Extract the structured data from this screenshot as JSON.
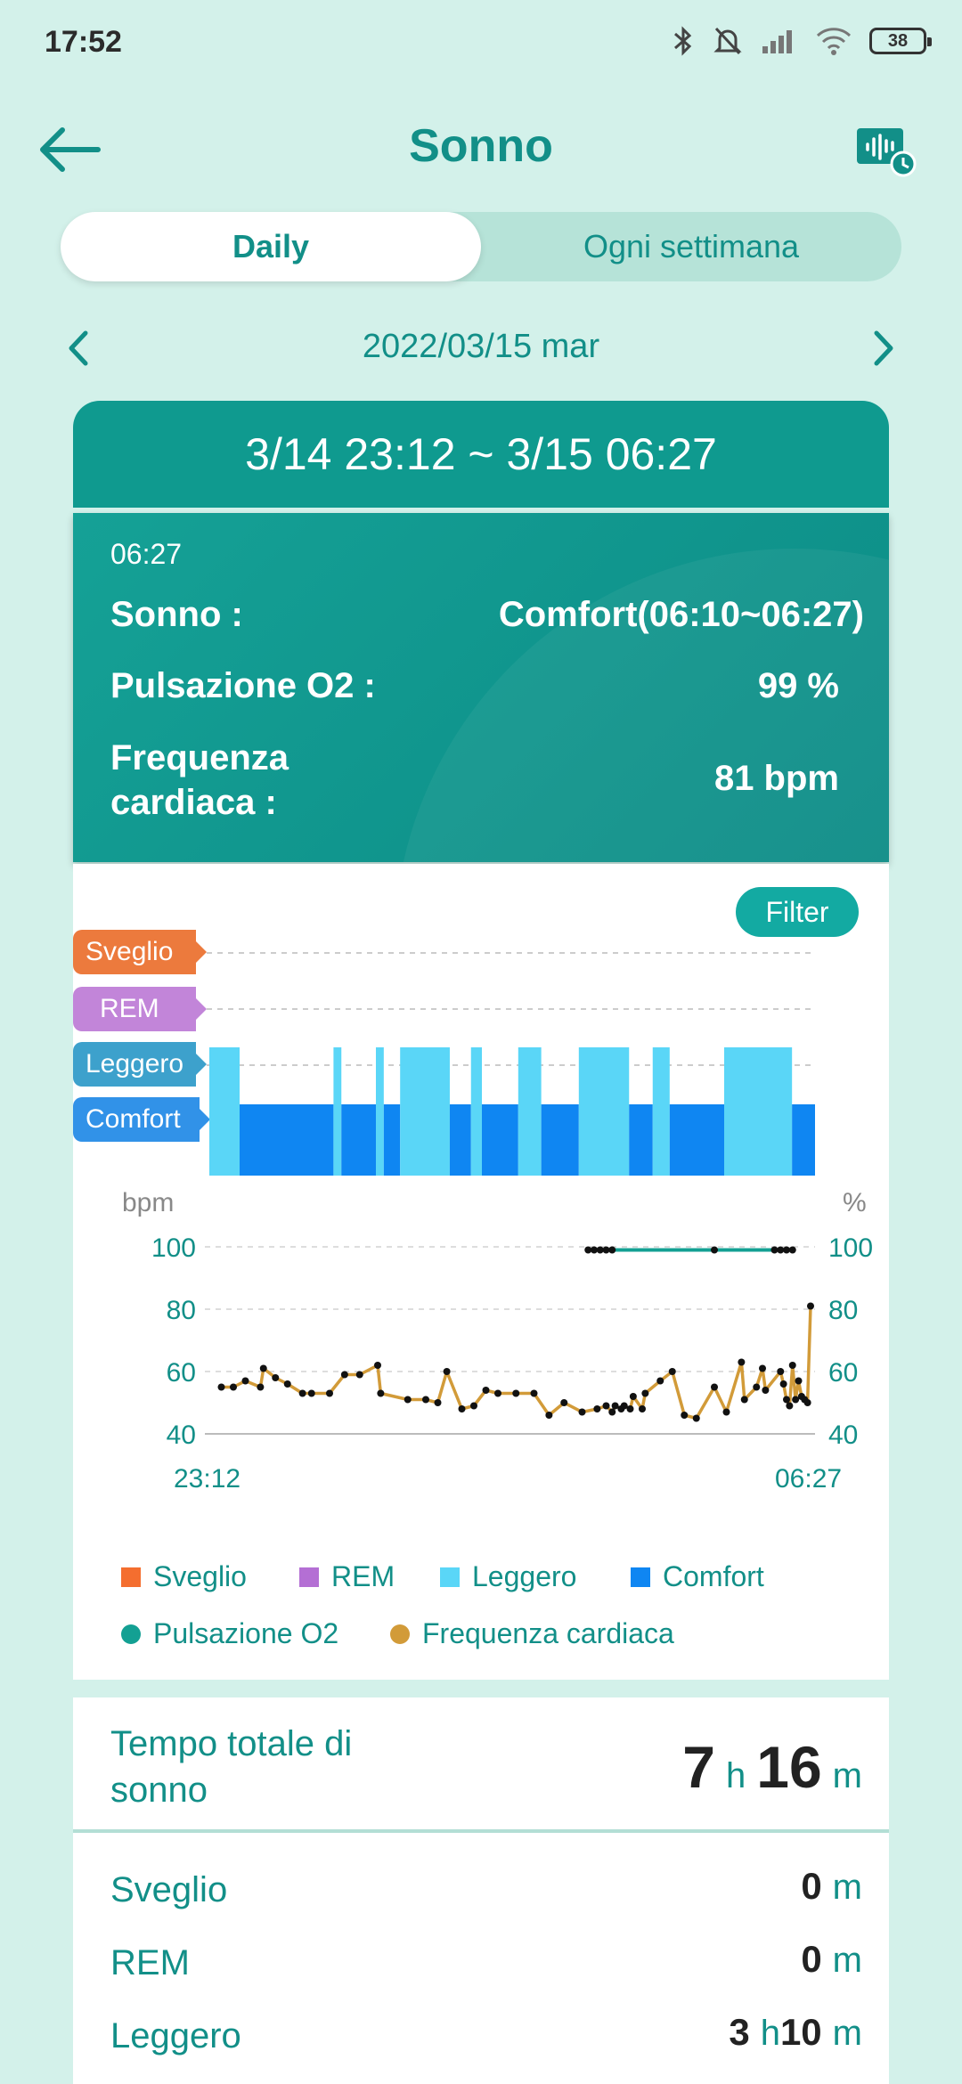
{
  "status_bar": {
    "time": "17:52",
    "battery": "38"
  },
  "header": {
    "title": "Sonno"
  },
  "tabs": [
    {
      "label": "Daily"
    },
    {
      "label": "Ogni settimana"
    }
  ],
  "date": {
    "label": "2022/03/15 mar"
  },
  "record": {
    "range": "3/14 23:12 ~ 3/15 06:27",
    "time": "06:27",
    "sleep_label": "Sonno :",
    "sleep_value": "Comfort(06:10~06:27)",
    "spo2_label": "Pulsazione O2 :",
    "spo2_value": "99 %",
    "hr_label": "Frequenza\ncardiaca :",
    "hr_value": "81 bpm"
  },
  "filter_label": "Filter",
  "chart_data": [
    {
      "type": "bar",
      "levels": [
        "Sveglio",
        "REM",
        "Leggero",
        "Comfort"
      ],
      "x_range": [
        "23:12",
        "06:27"
      ],
      "segments": [
        {
          "start": 0.0,
          "end": 0.05,
          "stage": "Leggero"
        },
        {
          "start": 0.05,
          "end": 0.205,
          "stage": "Comfort"
        },
        {
          "start": 0.205,
          "end": 0.218,
          "stage": "Leggero"
        },
        {
          "start": 0.218,
          "end": 0.275,
          "stage": "Comfort"
        },
        {
          "start": 0.275,
          "end": 0.288,
          "stage": "Leggero"
        },
        {
          "start": 0.288,
          "end": 0.315,
          "stage": "Comfort"
        },
        {
          "start": 0.315,
          "end": 0.397,
          "stage": "Leggero"
        },
        {
          "start": 0.397,
          "end": 0.432,
          "stage": "Comfort"
        },
        {
          "start": 0.432,
          "end": 0.45,
          "stage": "Leggero"
        },
        {
          "start": 0.45,
          "end": 0.51,
          "stage": "Comfort"
        },
        {
          "start": 0.51,
          "end": 0.548,
          "stage": "Leggero"
        },
        {
          "start": 0.548,
          "end": 0.61,
          "stage": "Comfort"
        },
        {
          "start": 0.61,
          "end": 0.693,
          "stage": "Leggero"
        },
        {
          "start": 0.693,
          "end": 0.732,
          "stage": "Comfort"
        },
        {
          "start": 0.732,
          "end": 0.76,
          "stage": "Leggero"
        },
        {
          "start": 0.76,
          "end": 0.85,
          "stage": "Comfort"
        },
        {
          "start": 0.85,
          "end": 0.962,
          "stage": "Leggero"
        },
        {
          "start": 0.962,
          "end": 1.0,
          "stage": "Comfort"
        }
      ],
      "legend": [
        {
          "name": "Sveglio",
          "color": "#f46e2f"
        },
        {
          "name": "REM",
          "color": "#b46fd4"
        },
        {
          "name": "Leggero",
          "color": "#5ad6f7"
        },
        {
          "name": "Comfort",
          "color": "#0f86f2"
        }
      ]
    },
    {
      "type": "line",
      "left_unit": "bpm",
      "right_unit": "%",
      "y_ticks": [
        "100",
        "80",
        "60",
        "40"
      ],
      "ylim": [
        40,
        100
      ],
      "x_labels": [
        "23:12",
        "06:27"
      ],
      "series": [
        {
          "name": "Pulsazione O2",
          "color": "#13a093",
          "points": [
            [
              0.63,
              99
            ],
            [
              0.64,
              99
            ],
            [
              0.65,
              99
            ],
            [
              0.66,
              99
            ],
            [
              0.67,
              99
            ],
            [
              0.84,
              99
            ],
            [
              0.94,
              99
            ],
            [
              0.95,
              99
            ],
            [
              0.96,
              99
            ],
            [
              0.97,
              99
            ]
          ]
        },
        {
          "name": "Frequenza cardiaca",
          "color": "#d29b39",
          "points": [
            [
              0.02,
              55
            ],
            [
              0.04,
              55
            ],
            [
              0.06,
              57
            ],
            [
              0.085,
              55
            ],
            [
              0.09,
              61
            ],
            [
              0.11,
              58
            ],
            [
              0.13,
              56
            ],
            [
              0.155,
              53
            ],
            [
              0.17,
              53
            ],
            [
              0.2,
              53
            ],
            [
              0.225,
              59
            ],
            [
              0.25,
              59
            ],
            [
              0.28,
              62
            ],
            [
              0.285,
              53
            ],
            [
              0.33,
              51
            ],
            [
              0.36,
              51
            ],
            [
              0.38,
              50
            ],
            [
              0.395,
              60
            ],
            [
              0.42,
              48
            ],
            [
              0.44,
              49
            ],
            [
              0.46,
              54
            ],
            [
              0.48,
              53
            ],
            [
              0.51,
              53
            ],
            [
              0.54,
              53
            ],
            [
              0.565,
              46
            ],
            [
              0.59,
              50
            ],
            [
              0.62,
              47
            ],
            [
              0.645,
              48
            ],
            [
              0.66,
              49
            ],
            [
              0.67,
              47
            ],
            [
              0.675,
              49
            ],
            [
              0.685,
              48
            ],
            [
              0.69,
              49
            ],
            [
              0.7,
              48
            ],
            [
              0.705,
              52
            ],
            [
              0.72,
              48
            ],
            [
              0.725,
              53
            ],
            [
              0.75,
              57
            ],
            [
              0.77,
              60
            ],
            [
              0.79,
              46
            ],
            [
              0.81,
              45
            ],
            [
              0.84,
              55
            ],
            [
              0.86,
              47
            ],
            [
              0.885,
              63
            ],
            [
              0.89,
              51
            ],
            [
              0.91,
              55
            ],
            [
              0.92,
              61
            ],
            [
              0.925,
              54
            ],
            [
              0.95,
              60
            ],
            [
              0.955,
              56
            ],
            [
              0.96,
              51
            ],
            [
              0.965,
              49
            ],
            [
              0.97,
              62
            ],
            [
              0.975,
              51
            ],
            [
              0.98,
              57
            ],
            [
              0.985,
              52
            ],
            [
              0.99,
              51
            ],
            [
              0.995,
              50
            ],
            [
              1.0,
              81
            ]
          ]
        }
      ]
    }
  ],
  "legend_items": [
    {
      "label": "Sveglio",
      "color": "#f46e2f"
    },
    {
      "label": "REM",
      "color": "#b46fd4"
    },
    {
      "label": "Leggero",
      "color": "#5ad6f7"
    },
    {
      "label": "Comfort",
      "color": "#0f86f2"
    },
    {
      "label": "Pulsazione O2",
      "color": "#13a093"
    },
    {
      "label": "Frequenza cardiaca",
      "color": "#d29b39"
    }
  ],
  "summary": {
    "total_label": "Tempo totale di sonno",
    "total_hours": "7",
    "total_minutes": "16",
    "unit_h": "h",
    "unit_m": "m",
    "rows": [
      {
        "label": "Sveglio",
        "minutes": "0"
      },
      {
        "label": "REM",
        "minutes": "0"
      },
      {
        "label": "Leggero",
        "hours": "3",
        "minutes": "10"
      }
    ]
  }
}
